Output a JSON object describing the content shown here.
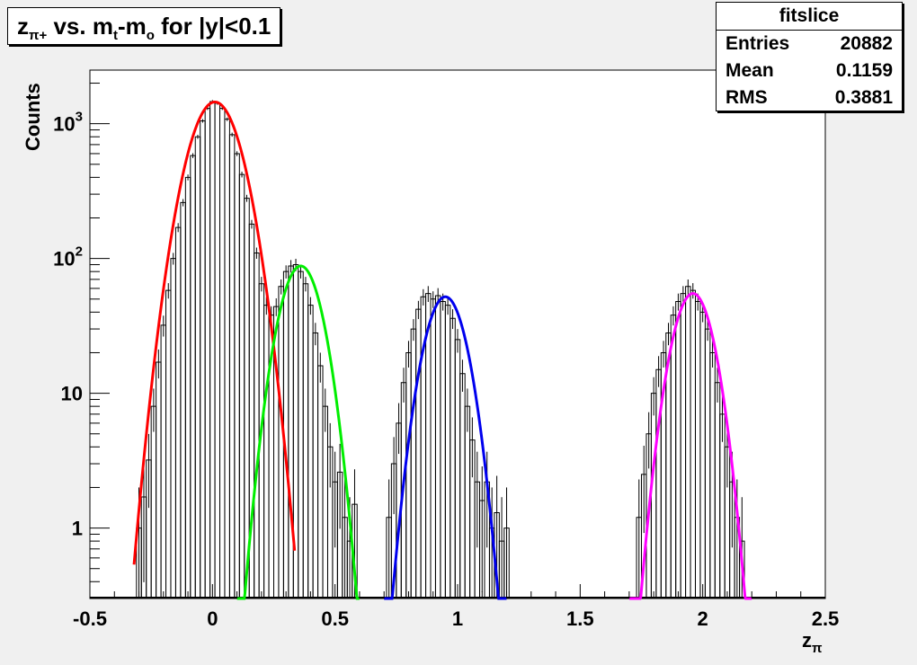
{
  "title": {
    "main": "z",
    "main_sub": "π+",
    "mid": " vs. m",
    "mid_sub": "t",
    "dash": "-m",
    "dash_sub": "o",
    "tail": " for |y|<0.1"
  },
  "stats": {
    "name": "fitslice",
    "rows": [
      {
        "label": "Entries",
        "value": "20882"
      },
      {
        "label": "Mean",
        "value": "0.1159"
      },
      {
        "label": "RMS",
        "value": "0.3881"
      }
    ]
  },
  "chart_data": {
    "type": "line",
    "xlabel": "z",
    "xlabel_sub": "π",
    "ylabel": "Counts",
    "xlim": [
      -0.5,
      2.5
    ],
    "ylim": [
      0.3,
      2500
    ],
    "y_scale": "log",
    "x_ticks": [
      {
        "value": -0.5,
        "label": "-0.5"
      },
      {
        "value": 0,
        "label": "0"
      },
      {
        "value": 0.5,
        "label": "0.5"
      },
      {
        "value": 1,
        "label": "1"
      },
      {
        "value": 1.5,
        "label": "1.5"
      },
      {
        "value": 2,
        "label": "2"
      },
      {
        "value": 2.5,
        "label": "2.5"
      }
    ],
    "y_ticks": [
      {
        "value": 1,
        "label": "1",
        "exp": ""
      },
      {
        "value": 10,
        "label": "10",
        "exp": ""
      },
      {
        "value": 100,
        "label": "10",
        "exp": "2"
      },
      {
        "value": 1000,
        "label": "10",
        "exp": "3"
      }
    ],
    "histogram": {
      "name": "data",
      "color": "#000000",
      "x": [
        -0.3,
        -0.28,
        -0.26,
        -0.24,
        -0.22,
        -0.2,
        -0.18,
        -0.16,
        -0.14,
        -0.12,
        -0.1,
        -0.08,
        -0.06,
        -0.04,
        -0.02,
        0,
        0.02,
        0.04,
        0.06,
        0.08,
        0.1,
        0.12,
        0.14,
        0.16,
        0.18,
        0.2,
        0.22,
        0.24,
        0.26,
        0.28,
        0.3,
        0.32,
        0.34,
        0.36,
        0.38,
        0.4,
        0.42,
        0.44,
        0.46,
        0.48,
        0.5,
        0.52,
        0.54,
        0.56,
        0.58,
        0.72,
        0.74,
        0.76,
        0.78,
        0.8,
        0.82,
        0.84,
        0.86,
        0.88,
        0.9,
        0.92,
        0.94,
        0.96,
        0.98,
        1.0,
        1.02,
        1.04,
        1.06,
        1.08,
        1.1,
        1.12,
        1.14,
        1.16,
        1.18,
        1.2,
        1.74,
        1.76,
        1.78,
        1.8,
        1.82,
        1.84,
        1.86,
        1.88,
        1.9,
        1.92,
        1.94,
        1.96,
        1.98,
        2.0,
        2.02,
        2.04,
        2.06,
        2.08,
        2.1,
        2.12,
        2.14,
        2.16
      ],
      "y": [
        1.0,
        1.7,
        3.2,
        8,
        17,
        32,
        58,
        100,
        170,
        260,
        400,
        580,
        800,
        1050,
        1300,
        1460,
        1420,
        1300,
        1080,
        830,
        600,
        420,
        280,
        180,
        110,
        65,
        45,
        38,
        44,
        62,
        80,
        88,
        90,
        80,
        65,
        45,
        28,
        16,
        8,
        4,
        2.2,
        2.6,
        1.2,
        0.8,
        1.5,
        1.2,
        3,
        6,
        12,
        20,
        30,
        42,
        52,
        55,
        50,
        53,
        48,
        45,
        36,
        25,
        14,
        8,
        4.5,
        2.2,
        1.6,
        2.2,
        1.0,
        1.3,
        0.8,
        1.0,
        1.2,
        2.5,
        5,
        10,
        15,
        20,
        28,
        38,
        48,
        55,
        62,
        58,
        48,
        40,
        30,
        20,
        12,
        7,
        4,
        2.2,
        1.2,
        0.8
      ]
    },
    "fits": [
      {
        "color": "#ff0000",
        "amplitude": 1450,
        "mean": 0.01,
        "sigma": 0.083,
        "range": [
          -0.32,
          0.335
        ]
      },
      {
        "color": "#00ee00",
        "amplitude": 88,
        "mean": 0.36,
        "sigma": 0.068,
        "range": [
          0.1,
          0.6
        ]
      },
      {
        "color": "#0000ee",
        "amplitude": 52,
        "mean": 0.95,
        "sigma": 0.0675,
        "range": [
          0.7,
          1.2
        ]
      },
      {
        "color": "#ff00ff",
        "amplitude": 55,
        "mean": 1.96,
        "sigma": 0.066,
        "range": [
          1.7,
          2.2
        ]
      }
    ]
  }
}
